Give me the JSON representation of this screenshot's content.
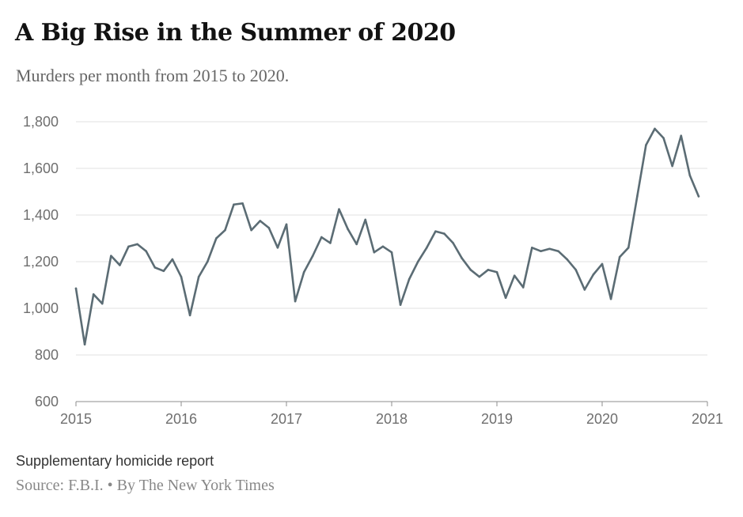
{
  "header": {
    "title": "A Big Rise in the Summer of 2020",
    "subtitle": "Murders per month from 2015 to 2020."
  },
  "footer": {
    "note": "Supplementary homicide report",
    "source": "Source: F.B.I. • By The New York Times"
  },
  "colors": {
    "line": "#5b6c74",
    "grid": "#e2e2e2",
    "axis": "#8c8c8c"
  },
  "chart_data": {
    "type": "line",
    "title": "A Big Rise in the Summer of 2020",
    "subtitle": "Murders per month from 2015 to 2020.",
    "xlabel": "",
    "ylabel": "",
    "xlim": [
      2015,
      2021
    ],
    "ylim": [
      600,
      1800
    ],
    "x_ticks": [
      2015,
      2016,
      2017,
      2018,
      2019,
      2020,
      2021
    ],
    "y_ticks": [
      600,
      800,
      1000,
      1200,
      1400,
      1600,
      1800
    ],
    "y_tick_labels": [
      "600",
      "800",
      "1,000",
      "1,200",
      "1,400",
      "1,600",
      "1,800"
    ],
    "grid": true,
    "legend": "none",
    "series": [
      {
        "x_start": "2015-01",
        "x_end": "2020-12",
        "frequency": "monthly",
        "values": [
          1085,
          845,
          1060,
          1020,
          1225,
          1185,
          1265,
          1275,
          1245,
          1175,
          1160,
          1210,
          1135,
          970,
          1135,
          1200,
          1300,
          1335,
          1445,
          1450,
          1335,
          1375,
          1345,
          1260,
          1360,
          1030,
          1155,
          1225,
          1305,
          1280,
          1425,
          1340,
          1275,
          1380,
          1240,
          1265,
          1240,
          1015,
          1125,
          1200,
          1260,
          1330,
          1320,
          1280,
          1215,
          1165,
          1135,
          1165,
          1155,
          1045,
          1140,
          1090,
          1260,
          1245,
          1255,
          1245,
          1210,
          1165,
          1080,
          1145,
          1190,
          1040,
          1220,
          1260,
          1480,
          1700,
          1770,
          1730,
          1610,
          1740,
          1570,
          1480
        ]
      }
    ]
  }
}
